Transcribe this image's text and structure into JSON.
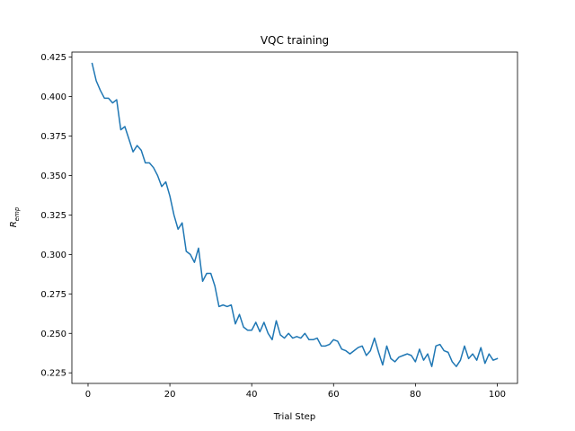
{
  "chart_data": {
    "type": "line",
    "title": "VQC training",
    "xlabel": "Trial Step",
    "ylabel": "R",
    "ylabel_subscript": "emp",
    "xlim": [
      -3.95,
      104.95
    ],
    "ylim": [
      0.2183,
      0.4282
    ],
    "xticks": [
      0,
      20,
      40,
      60,
      80,
      100
    ],
    "yticks": [
      0.225,
      0.25,
      0.275,
      0.3,
      0.325,
      0.35,
      0.375,
      0.4,
      0.425
    ],
    "ytick_labels": [
      "0.225",
      "0.250",
      "0.275",
      "0.300",
      "0.325",
      "0.350",
      "0.375",
      "0.400",
      "0.425"
    ],
    "grid": false,
    "series": [
      {
        "color": "#1f77b4",
        "x": [
          1,
          2,
          3,
          4,
          5,
          6,
          7,
          8,
          9,
          10,
          11,
          12,
          13,
          14,
          15,
          16,
          17,
          18,
          19,
          20,
          21,
          22,
          23,
          24,
          25,
          26,
          27,
          28,
          29,
          30,
          31,
          32,
          33,
          34,
          35,
          36,
          37,
          38,
          39,
          40,
          41,
          42,
          43,
          44,
          45,
          46,
          47,
          48,
          49,
          50,
          51,
          52,
          53,
          54,
          55,
          56,
          57,
          58,
          59,
          60,
          61,
          62,
          63,
          64,
          65,
          66,
          67,
          68,
          69,
          70,
          71,
          72,
          73,
          74,
          75,
          76,
          77,
          78,
          79,
          80,
          81,
          82,
          83,
          84,
          85,
          86,
          87,
          88,
          89,
          90,
          91,
          92,
          93,
          94,
          95,
          96,
          97,
          98,
          99,
          100
        ],
        "values": [
          0.421,
          0.41,
          0.404,
          0.399,
          0.399,
          0.396,
          0.398,
          0.379,
          0.381,
          0.373,
          0.365,
          0.369,
          0.366,
          0.358,
          0.358,
          0.355,
          0.35,
          0.343,
          0.346,
          0.337,
          0.325,
          0.316,
          0.32,
          0.302,
          0.3,
          0.295,
          0.304,
          0.283,
          0.288,
          0.288,
          0.28,
          0.267,
          0.268,
          0.267,
          0.268,
          0.256,
          0.262,
          0.254,
          0.252,
          0.252,
          0.257,
          0.251,
          0.257,
          0.25,
          0.246,
          0.258,
          0.249,
          0.247,
          0.25,
          0.247,
          0.248,
          0.247,
          0.25,
          0.246,
          0.246,
          0.247,
          0.242,
          0.242,
          0.243,
          0.246,
          0.245,
          0.24,
          0.239,
          0.237,
          0.239,
          0.241,
          0.242,
          0.236,
          0.239,
          0.247,
          0.238,
          0.23,
          0.242,
          0.234,
          0.232,
          0.235,
          0.236,
          0.237,
          0.236,
          0.232,
          0.24,
          0.233,
          0.237,
          0.229,
          0.242,
          0.243,
          0.239,
          0.238,
          0.232,
          0.229,
          0.233,
          0.242,
          0.234,
          0.237,
          0.233,
          0.241,
          0.231,
          0.237,
          0.233,
          0.234
        ]
      }
    ]
  }
}
